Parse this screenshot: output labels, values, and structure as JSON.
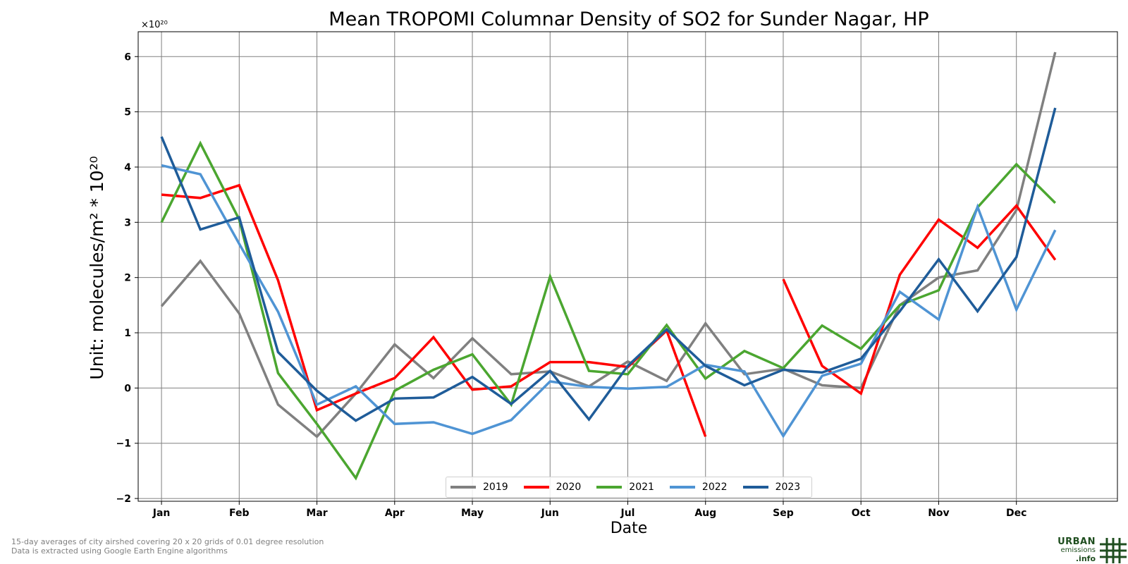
{
  "chart_data": {
    "type": "line",
    "title": "Mean TROPOMI Columnar Density of SO2 for Sunder Nagar, HP",
    "xlabel": "Date",
    "ylabel": "Unit: molecules/m² * 10²⁰",
    "y_multiplier": "×10²⁰",
    "ylim": [
      -2.05,
      6.45
    ],
    "xlim": [
      -0.6,
      24.6
    ],
    "grid": true,
    "legend_position": "bottom-center",
    "x_ticks": [
      {
        "x": 0,
        "label": "Jan"
      },
      {
        "x": 2,
        "label": "Feb"
      },
      {
        "x": 4,
        "label": "Mar"
      },
      {
        "x": 6,
        "label": "Apr"
      },
      {
        "x": 8,
        "label": "May"
      },
      {
        "x": 10,
        "label": "Jun"
      },
      {
        "x": 12,
        "label": "Jul"
      },
      {
        "x": 14,
        "label": "Aug"
      },
      {
        "x": 16,
        "label": "Sep"
      },
      {
        "x": 18,
        "label": "Oct"
      },
      {
        "x": 20,
        "label": "Nov"
      },
      {
        "x": 22,
        "label": "Dec"
      }
    ],
    "y_ticks": [
      {
        "y": -2,
        "label": "−2"
      },
      {
        "y": -1,
        "label": "−1"
      },
      {
        "y": 0,
        "label": "0"
      },
      {
        "y": 1,
        "label": "1"
      },
      {
        "y": 2,
        "label": "2"
      },
      {
        "y": 3,
        "label": "3"
      },
      {
        "y": 4,
        "label": "4"
      },
      {
        "y": 5,
        "label": "5"
      },
      {
        "y": 6,
        "label": "6"
      }
    ],
    "series": [
      {
        "name": "2019",
        "color": "#808080",
        "values": [
          1.48,
          2.3,
          1.35,
          -0.3,
          -0.88,
          -0.1,
          0.79,
          0.18,
          0.9,
          0.25,
          0.3,
          0.03,
          0.48,
          0.13,
          1.17,
          0.25,
          0.35,
          0.05,
          0.0,
          1.5,
          2.0,
          2.13,
          3.22,
          6.08
        ]
      },
      {
        "name": "2020",
        "color": "#ff0000",
        "values": [
          3.5,
          3.44,
          3.67,
          1.95,
          -0.4,
          -0.1,
          0.18,
          0.92,
          -0.03,
          0.03,
          0.47,
          0.47,
          0.38,
          1.04,
          -0.88,
          null,
          1.97,
          0.4,
          -0.1,
          2.05,
          3.05,
          2.54,
          3.3,
          2.32
        ]
      },
      {
        "name": "2021",
        "color": "#4ba630",
        "values": [
          3.0,
          4.43,
          3.05,
          0.27,
          -0.65,
          -1.63,
          -0.05,
          0.33,
          0.61,
          -0.3,
          2.02,
          0.31,
          0.25,
          1.14,
          0.17,
          0.67,
          0.36,
          1.13,
          0.71,
          1.5,
          1.77,
          3.27,
          4.05,
          3.35
        ]
      },
      {
        "name": "2022",
        "color": "#4f94d4",
        "values": [
          4.03,
          3.87,
          2.61,
          1.38,
          -0.3,
          0.03,
          -0.65,
          -0.62,
          -0.83,
          -0.58,
          0.12,
          0.02,
          -0.01,
          0.02,
          0.42,
          0.3,
          -0.87,
          0.22,
          0.44,
          1.74,
          1.24,
          3.28,
          1.42,
          2.86
        ]
      },
      {
        "name": "2023",
        "color": "#1f5c99",
        "values": [
          4.55,
          2.87,
          3.09,
          0.65,
          -0.05,
          -0.59,
          -0.19,
          -0.17,
          0.2,
          -0.29,
          0.31,
          -0.57,
          0.4,
          1.06,
          0.4,
          0.05,
          0.33,
          0.28,
          0.53,
          1.39,
          2.33,
          1.39,
          2.37,
          5.07
        ]
      }
    ]
  },
  "footnote": {
    "line1": "15-day averages of city airshed covering 20 x 20 grids of 0.01 degree resolution",
    "line2": "Data is extracted using Google Earth Engine algorithms"
  },
  "logo": {
    "line1": "URBAN",
    "line2": "emissions",
    "line3": ".info",
    "color": "#1f4e1f"
  }
}
